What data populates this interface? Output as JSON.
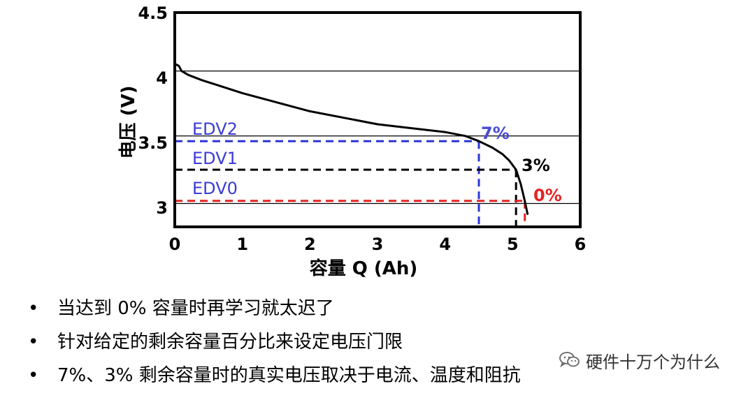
{
  "chart_data": {
    "type": "line",
    "xlabel": "容量 Q (Ah)",
    "ylabel": "电压 (V)",
    "xlim": [
      0,
      6
    ],
    "ylim": [
      2.85,
      4.5
    ],
    "xticks": [
      "0",
      "1",
      "2",
      "3",
      "4",
      "5",
      "6"
    ],
    "yticks": [
      {
        "value": 3,
        "label": "3"
      },
      {
        "value": 3.5,
        "label": "3.5"
      },
      {
        "value": 4,
        "label": "4"
      },
      {
        "value": 4.5,
        "label": "4.5"
      }
    ],
    "series": [
      {
        "color": "#000000",
        "x": [
          0.02,
          0.06,
          0.1,
          0.2,
          0.4,
          0.7,
          1.0,
          1.5,
          2.0,
          2.5,
          3.0,
          3.5,
          4.0,
          4.3,
          4.5,
          4.7,
          4.85,
          4.95,
          5.05,
          5.12,
          5.18,
          5.22
        ],
        "y": [
          4.1,
          4.09,
          4.05,
          4.02,
          3.98,
          3.93,
          3.88,
          3.81,
          3.74,
          3.69,
          3.64,
          3.61,
          3.58,
          3.55,
          3.51,
          3.46,
          3.41,
          3.36,
          3.29,
          3.18,
          3.05,
          2.95
        ]
      }
    ],
    "hlines": [
      {
        "y": 4.05,
        "color": "#000000",
        "style": "solid"
      },
      {
        "y": 3.55,
        "color": "#000000",
        "style": "solid"
      },
      {
        "y": 3.03,
        "color": "#000000",
        "style": "solid"
      }
    ],
    "thresholds": [
      {
        "label": "EDV2",
        "percent": "7%",
        "x": 4.5,
        "y": 3.51,
        "color": "#2b35d6",
        "label_color": "#3b3bd8",
        "percent_color": "#4a4ad6"
      },
      {
        "label": "EDV1",
        "percent": "3%",
        "x": 5.05,
        "y": 3.29,
        "color": "#000000",
        "label_color": "#3b3bd8",
        "percent_color": "#000000"
      },
      {
        "label": "EDV0",
        "percent": "0%",
        "x": 5.18,
        "y": 3.05,
        "color": "#e52222",
        "label_color": "#3b3bd8",
        "percent_color": "#e52222"
      }
    ]
  },
  "bullets": [
    {
      "marker": "•",
      "text": "当达到 0% 容量时再学习就太迟了"
    },
    {
      "marker": "•",
      "text": "针对给定的剩余容量百分比来设定电压门限"
    },
    {
      "marker": "•",
      "text": "7%、3% 剩余容量时的真实电压取决于电流、温度和阻抗"
    }
  ],
  "watermark": {
    "text": "硬件十万个为什么",
    "icon": "wechat-icon"
  }
}
